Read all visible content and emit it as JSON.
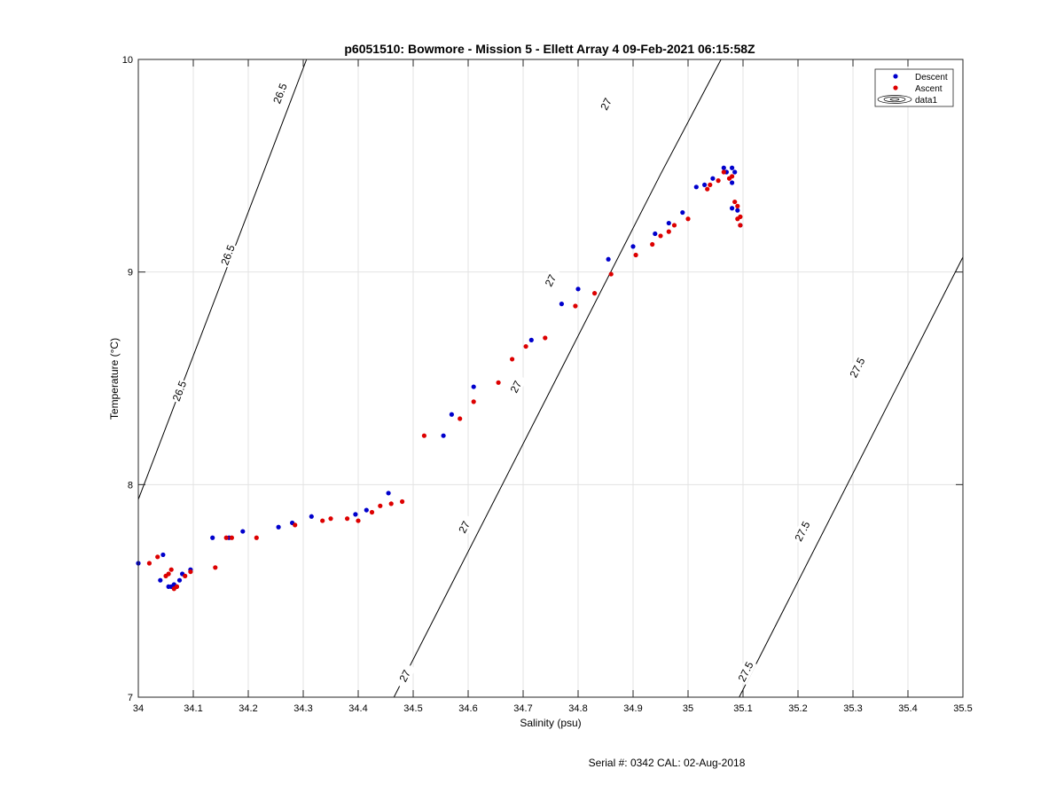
{
  "chart_data": {
    "type": "scatter",
    "title": "p6051510: Bowmore - Mission 5 - Ellett Array 4 09-Feb-2021 06:15:58Z",
    "xlabel": "Salinity (psu)",
    "ylabel": "Temperature (°C)",
    "xlim": [
      34,
      35.5
    ],
    "ylim": [
      7,
      10
    ],
    "x_ticks": [
      34,
      34.1,
      34.2,
      34.3,
      34.4,
      34.5,
      34.6,
      34.7,
      34.8,
      34.9,
      35,
      35.1,
      35.2,
      35.3,
      35.4,
      35.5
    ],
    "x_tick_labels": [
      "34",
      "34.1",
      "34.2",
      "34.3",
      "34.4",
      "34.5",
      "34.6",
      "34.7",
      "34.8",
      "34.9",
      "35",
      "35.1",
      "35.2",
      "35.3",
      "35.4",
      "35.5"
    ],
    "y_ticks": [
      7,
      8,
      9,
      10
    ],
    "y_tick_labels": [
      "7",
      "8",
      "9",
      "10"
    ],
    "grid": true,
    "legend_position": "top-right",
    "legend": [
      {
        "name": "Descent",
        "marker": "dot",
        "color": "#0000cc"
      },
      {
        "name": "Ascent",
        "marker": "dot",
        "color": "#dd0000"
      },
      {
        "name": "data1",
        "marker": "contour",
        "color": "#000000"
      }
    ],
    "contours": [
      {
        "label": "26.5",
        "points": [
          [
            34.0,
            7.93
          ],
          [
            34.25,
            9.62
          ],
          [
            34.306,
            10.0
          ]
        ],
        "label_positions": [
          [
            34.075,
            8.44
          ],
          [
            34.163,
            9.08
          ],
          [
            34.258,
            9.84
          ]
        ]
      },
      {
        "label": "27",
        "points": [
          [
            34.465,
            7.0
          ],
          [
            34.95,
            9.46
          ],
          [
            35.06,
            10.0
          ]
        ],
        "label_positions": [
          [
            34.485,
            7.1
          ],
          [
            34.593,
            7.8
          ],
          [
            34.687,
            8.46
          ],
          [
            34.75,
            8.96
          ],
          [
            34.851,
            9.79
          ]
        ]
      },
      {
        "label": "27.5",
        "points": [
          [
            35.093,
            7.0
          ],
          [
            35.5,
            9.07
          ]
        ],
        "label_positions": [
          [
            35.105,
            7.12
          ],
          [
            35.208,
            7.78
          ],
          [
            35.308,
            8.55
          ]
        ]
      }
    ],
    "series": [
      {
        "name": "Descent",
        "color": "#0000cc",
        "points": [
          [
            34.0,
            7.63
          ],
          [
            34.04,
            7.55
          ],
          [
            34.045,
            7.67
          ],
          [
            34.055,
            7.52
          ],
          [
            34.06,
            7.52
          ],
          [
            34.065,
            7.53
          ],
          [
            34.07,
            7.52
          ],
          [
            34.075,
            7.55
          ],
          [
            34.08,
            7.58
          ],
          [
            34.095,
            7.6
          ],
          [
            34.135,
            7.75
          ],
          [
            34.165,
            7.75
          ],
          [
            34.19,
            7.78
          ],
          [
            34.255,
            7.8
          ],
          [
            34.28,
            7.82
          ],
          [
            34.315,
            7.85
          ],
          [
            34.395,
            7.86
          ],
          [
            34.415,
            7.88
          ],
          [
            34.455,
            7.96
          ],
          [
            34.555,
            8.23
          ],
          [
            34.57,
            8.33
          ],
          [
            34.61,
            8.46
          ],
          [
            34.715,
            8.68
          ],
          [
            34.77,
            8.85
          ],
          [
            34.8,
            8.92
          ],
          [
            34.855,
            9.06
          ],
          [
            34.9,
            9.12
          ],
          [
            34.94,
            9.18
          ],
          [
            34.965,
            9.23
          ],
          [
            34.99,
            9.28
          ],
          [
            35.015,
            9.4
          ],
          [
            35.03,
            9.41
          ],
          [
            35.045,
            9.44
          ],
          [
            35.065,
            9.49
          ],
          [
            35.07,
            9.47
          ],
          [
            35.08,
            9.49
          ],
          [
            35.085,
            9.47
          ],
          [
            35.08,
            9.42
          ],
          [
            35.08,
            9.3
          ],
          [
            35.09,
            9.29
          ],
          [
            35.095,
            9.22
          ]
        ]
      },
      {
        "name": "Ascent",
        "color": "#dd0000",
        "points": [
          [
            34.02,
            7.63
          ],
          [
            34.035,
            7.66
          ],
          [
            34.05,
            7.57
          ],
          [
            34.055,
            7.58
          ],
          [
            34.06,
            7.6
          ],
          [
            34.065,
            7.51
          ],
          [
            34.07,
            7.52
          ],
          [
            34.085,
            7.57
          ],
          [
            34.095,
            7.59
          ],
          [
            34.14,
            7.61
          ],
          [
            34.16,
            7.75
          ],
          [
            34.17,
            7.75
          ],
          [
            34.215,
            7.75
          ],
          [
            34.285,
            7.81
          ],
          [
            34.335,
            7.83
          ],
          [
            34.35,
            7.84
          ],
          [
            34.38,
            7.84
          ],
          [
            34.4,
            7.83
          ],
          [
            34.425,
            7.87
          ],
          [
            34.44,
            7.9
          ],
          [
            34.46,
            7.91
          ],
          [
            34.48,
            7.92
          ],
          [
            34.52,
            8.23
          ],
          [
            34.585,
            8.31
          ],
          [
            34.61,
            8.39
          ],
          [
            34.655,
            8.48
          ],
          [
            34.68,
            8.59
          ],
          [
            34.705,
            8.65
          ],
          [
            34.74,
            8.69
          ],
          [
            34.795,
            8.84
          ],
          [
            34.83,
            8.9
          ],
          [
            34.86,
            8.99
          ],
          [
            34.905,
            9.08
          ],
          [
            34.935,
            9.13
          ],
          [
            34.95,
            9.17
          ],
          [
            34.965,
            9.19
          ],
          [
            34.975,
            9.22
          ],
          [
            35.0,
            9.25
          ],
          [
            35.035,
            9.39
          ],
          [
            35.04,
            9.41
          ],
          [
            35.055,
            9.43
          ],
          [
            35.065,
            9.47
          ],
          [
            35.075,
            9.44
          ],
          [
            35.08,
            9.45
          ],
          [
            35.085,
            9.33
          ],
          [
            35.09,
            9.31
          ],
          [
            35.09,
            9.25
          ],
          [
            35.095,
            9.26
          ],
          [
            35.095,
            9.22
          ]
        ]
      }
    ]
  },
  "footer": "Serial #: 0342  CAL: 02-Aug-2018"
}
